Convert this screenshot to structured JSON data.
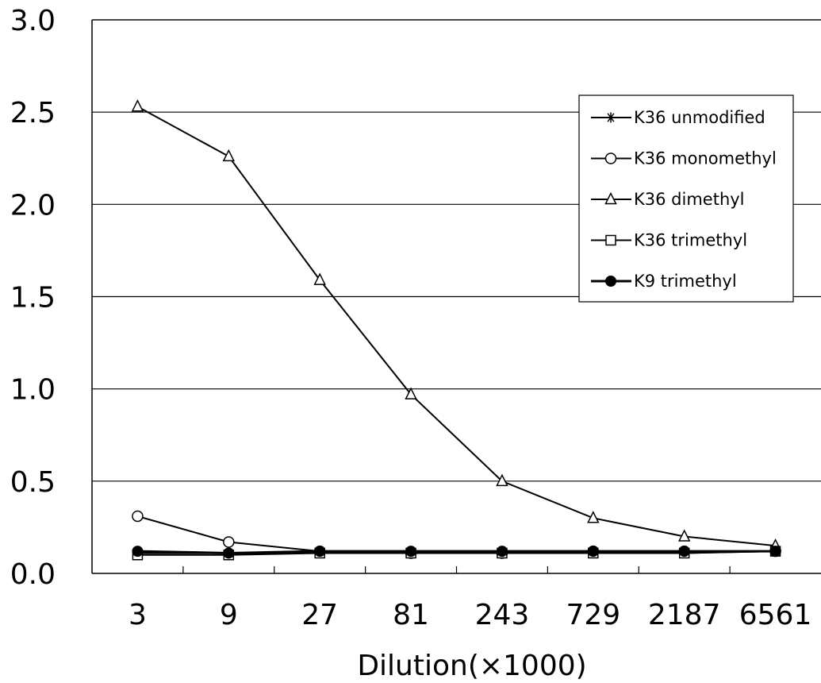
{
  "chart_data": {
    "type": "line",
    "title": "",
    "xlabel": "Dilution(×1000)",
    "ylabel": "",
    "categories": [
      "3",
      "9",
      "27",
      "81",
      "243",
      "729",
      "2187",
      "6561"
    ],
    "ylim": [
      0,
      3.0
    ],
    "yticks": [
      "0.0",
      "0.5",
      "1.0",
      "1.5",
      "2.0",
      "2.5",
      "3.0"
    ],
    "grid": "horizontal",
    "legend_position": "right",
    "series": [
      {
        "name": "K36 unmodified",
        "marker": "asterisk",
        "values": [
          0.11,
          0.11,
          0.11,
          0.11,
          0.11,
          0.11,
          0.11,
          0.12
        ]
      },
      {
        "name": "K36 monomethyl",
        "marker": "circle-open",
        "values": [
          0.31,
          0.17,
          0.12,
          0.11,
          0.11,
          0.12,
          0.12,
          0.12
        ]
      },
      {
        "name": "K36 dimethyl",
        "marker": "triangle-open",
        "values": [
          2.53,
          2.26,
          1.59,
          0.97,
          0.5,
          0.3,
          0.2,
          0.15
        ]
      },
      {
        "name": "K36 trimethyl",
        "marker": "square-open",
        "values": [
          0.1,
          0.1,
          0.11,
          0.11,
          0.11,
          0.11,
          0.11,
          0.12
        ]
      },
      {
        "name": "K9 trimethyl",
        "marker": "circle-filled",
        "values": [
          0.12,
          0.11,
          0.12,
          0.12,
          0.12,
          0.12,
          0.12,
          0.12
        ]
      }
    ]
  }
}
